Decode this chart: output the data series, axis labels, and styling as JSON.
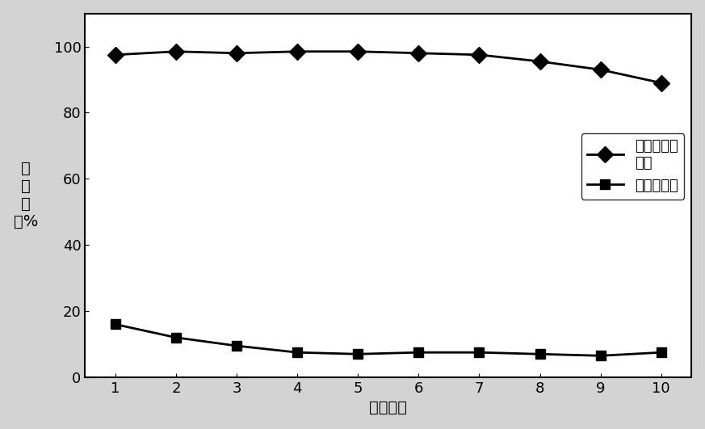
{
  "x": [
    1,
    2,
    3,
    4,
    5,
    6,
    7,
    8,
    9,
    10
  ],
  "series1_y": [
    97.5,
    98.5,
    98.0,
    98.5,
    98.5,
    98.0,
    97.5,
    95.5,
    93.0,
    89.0
  ],
  "series2_y": [
    16.0,
    12.0,
    9.5,
    7.5,
    7.0,
    7.5,
    7.5,
    7.0,
    6.5,
    7.5
  ],
  "series1_label": "改性活性炭\n纤维",
  "series2_label": "活性炭纤维",
  "xlabel": "次数／次",
  "ylabel_chars": [
    "去",
    "除",
    "率",
    "／%"
  ],
  "xlim": [
    0.5,
    10.5
  ],
  "ylim": [
    0,
    110
  ],
  "yticks": [
    0,
    20,
    40,
    60,
    80,
    100
  ],
  "xticks": [
    1,
    2,
    3,
    4,
    5,
    6,
    7,
    8,
    9,
    10
  ],
  "line_color": "#000000",
  "marker1": "D",
  "marker2": "s",
  "markersize1": 10,
  "markersize2": 9,
  "linewidth": 2.0,
  "background_color": "#d3d3d3",
  "plot_bg_color": "#ffffff",
  "legend_fontsize": 13,
  "axis_fontsize": 14,
  "tick_fontsize": 13
}
